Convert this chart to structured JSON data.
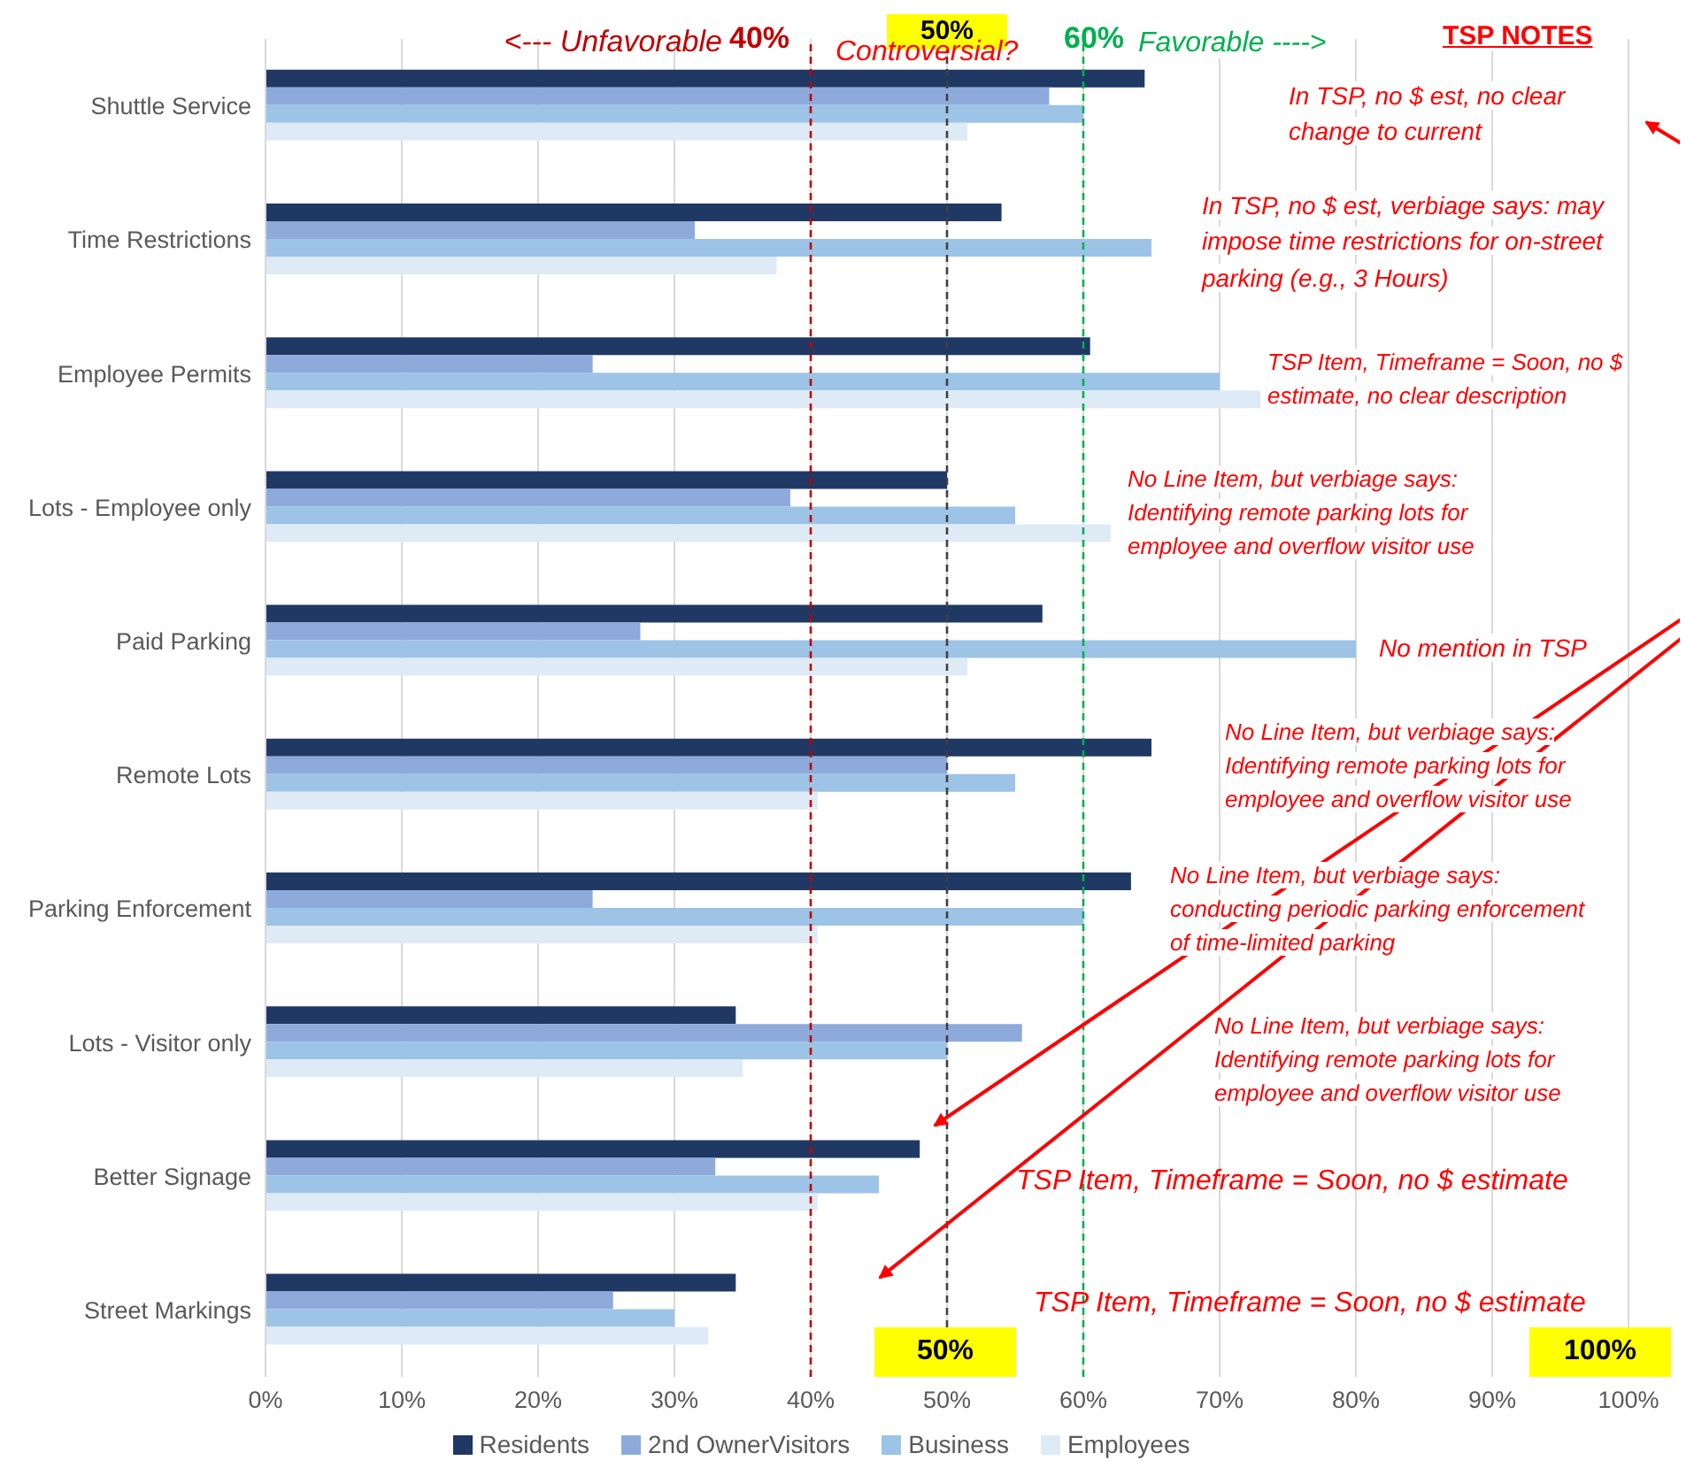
{
  "chart_data": {
    "type": "bar",
    "orientation": "horizontal",
    "categories": [
      "Shuttle Service",
      "Time Restrictions",
      "Employee Permits",
      "Lots - Employee only",
      "Paid Parking",
      "Remote Lots",
      "Parking Enforcement",
      "Lots - Visitor only",
      "Better Signage",
      "Street Markings"
    ],
    "series": [
      {
        "name": "Residents",
        "color": "#203864",
        "values": [
          64.5,
          54,
          60.5,
          50,
          57,
          65,
          63.5,
          34.5,
          48,
          34.5
        ]
      },
      {
        "name": "2nd OwnerVisitors",
        "color": "#8eaadb",
        "values": [
          57.5,
          31.5,
          24,
          38.5,
          27.5,
          50,
          24,
          55.5,
          33,
          25.5
        ]
      },
      {
        "name": "Business",
        "color": "#9dc3e6",
        "values": [
          60,
          65,
          70,
          55,
          80,
          55,
          60,
          50,
          45,
          30
        ]
      },
      {
        "name": "Employees",
        "color": "#deebf7",
        "values": [
          51.5,
          37.5,
          73,
          62,
          51.5,
          40.5,
          40.5,
          35,
          40.5,
          32.5
        ]
      }
    ],
    "xlim": [
      0,
      100
    ],
    "xticks": [
      {
        "value": 0,
        "label": "0%"
      },
      {
        "value": 10,
        "label": "10%"
      },
      {
        "value": 20,
        "label": "20%"
      },
      {
        "value": 30,
        "label": "30%"
      },
      {
        "value": 40,
        "label": "40%"
      },
      {
        "value": 50,
        "label": "50%"
      },
      {
        "value": 60,
        "label": "60%"
      },
      {
        "value": 70,
        "label": "70%"
      },
      {
        "value": 80,
        "label": "80%"
      },
      {
        "value": 90,
        "label": "90%"
      },
      {
        "value": 100,
        "label": "100%"
      }
    ],
    "grid": "x",
    "legend": "bottom",
    "ref_lines": [
      {
        "axis": "x",
        "value": 40,
        "label": "40%",
        "color": "#c00000",
        "line_style": "dashed"
      },
      {
        "axis": "x",
        "value": 50,
        "label": "50%",
        "color": "#404040",
        "line_style": "dashed"
      },
      {
        "axis": "x",
        "value": 60,
        "label": "60%",
        "color": "#00b050",
        "line_style": "dashed"
      }
    ],
    "annotations": [
      "<--- Unfavorable",
      "Controversial?",
      "Favorable ---->",
      "TSP NOTES",
      "In TSP, no $ est, no clear change to current",
      "In TSP, no $ est, verbiage says: may impose time restrictions for on-street parking (e.g., 3 Hours)",
      "TSP Item, Timeframe = Soon, no $ estimate, no clear description",
      "No Line Item, but verbiage says: Identifying remote parking lots for employee and overflow visitor use",
      "No mention in TSP",
      "No Line Item, but verbiage says: Identifying remote parking lots for employee and overflow visitor use",
      "No Line Item, but verbiage says: conducting periodic parking enforcement of time-limited parking",
      "No Line Item, but verbiage says: Identifying remote parking lots for employee and overflow visitor use",
      "TSP Item, Timeframe = Soon, no $ estimate",
      "TSP Item, Timeframe = Soon, no $ estimate",
      "50%",
      "100%"
    ]
  }
}
